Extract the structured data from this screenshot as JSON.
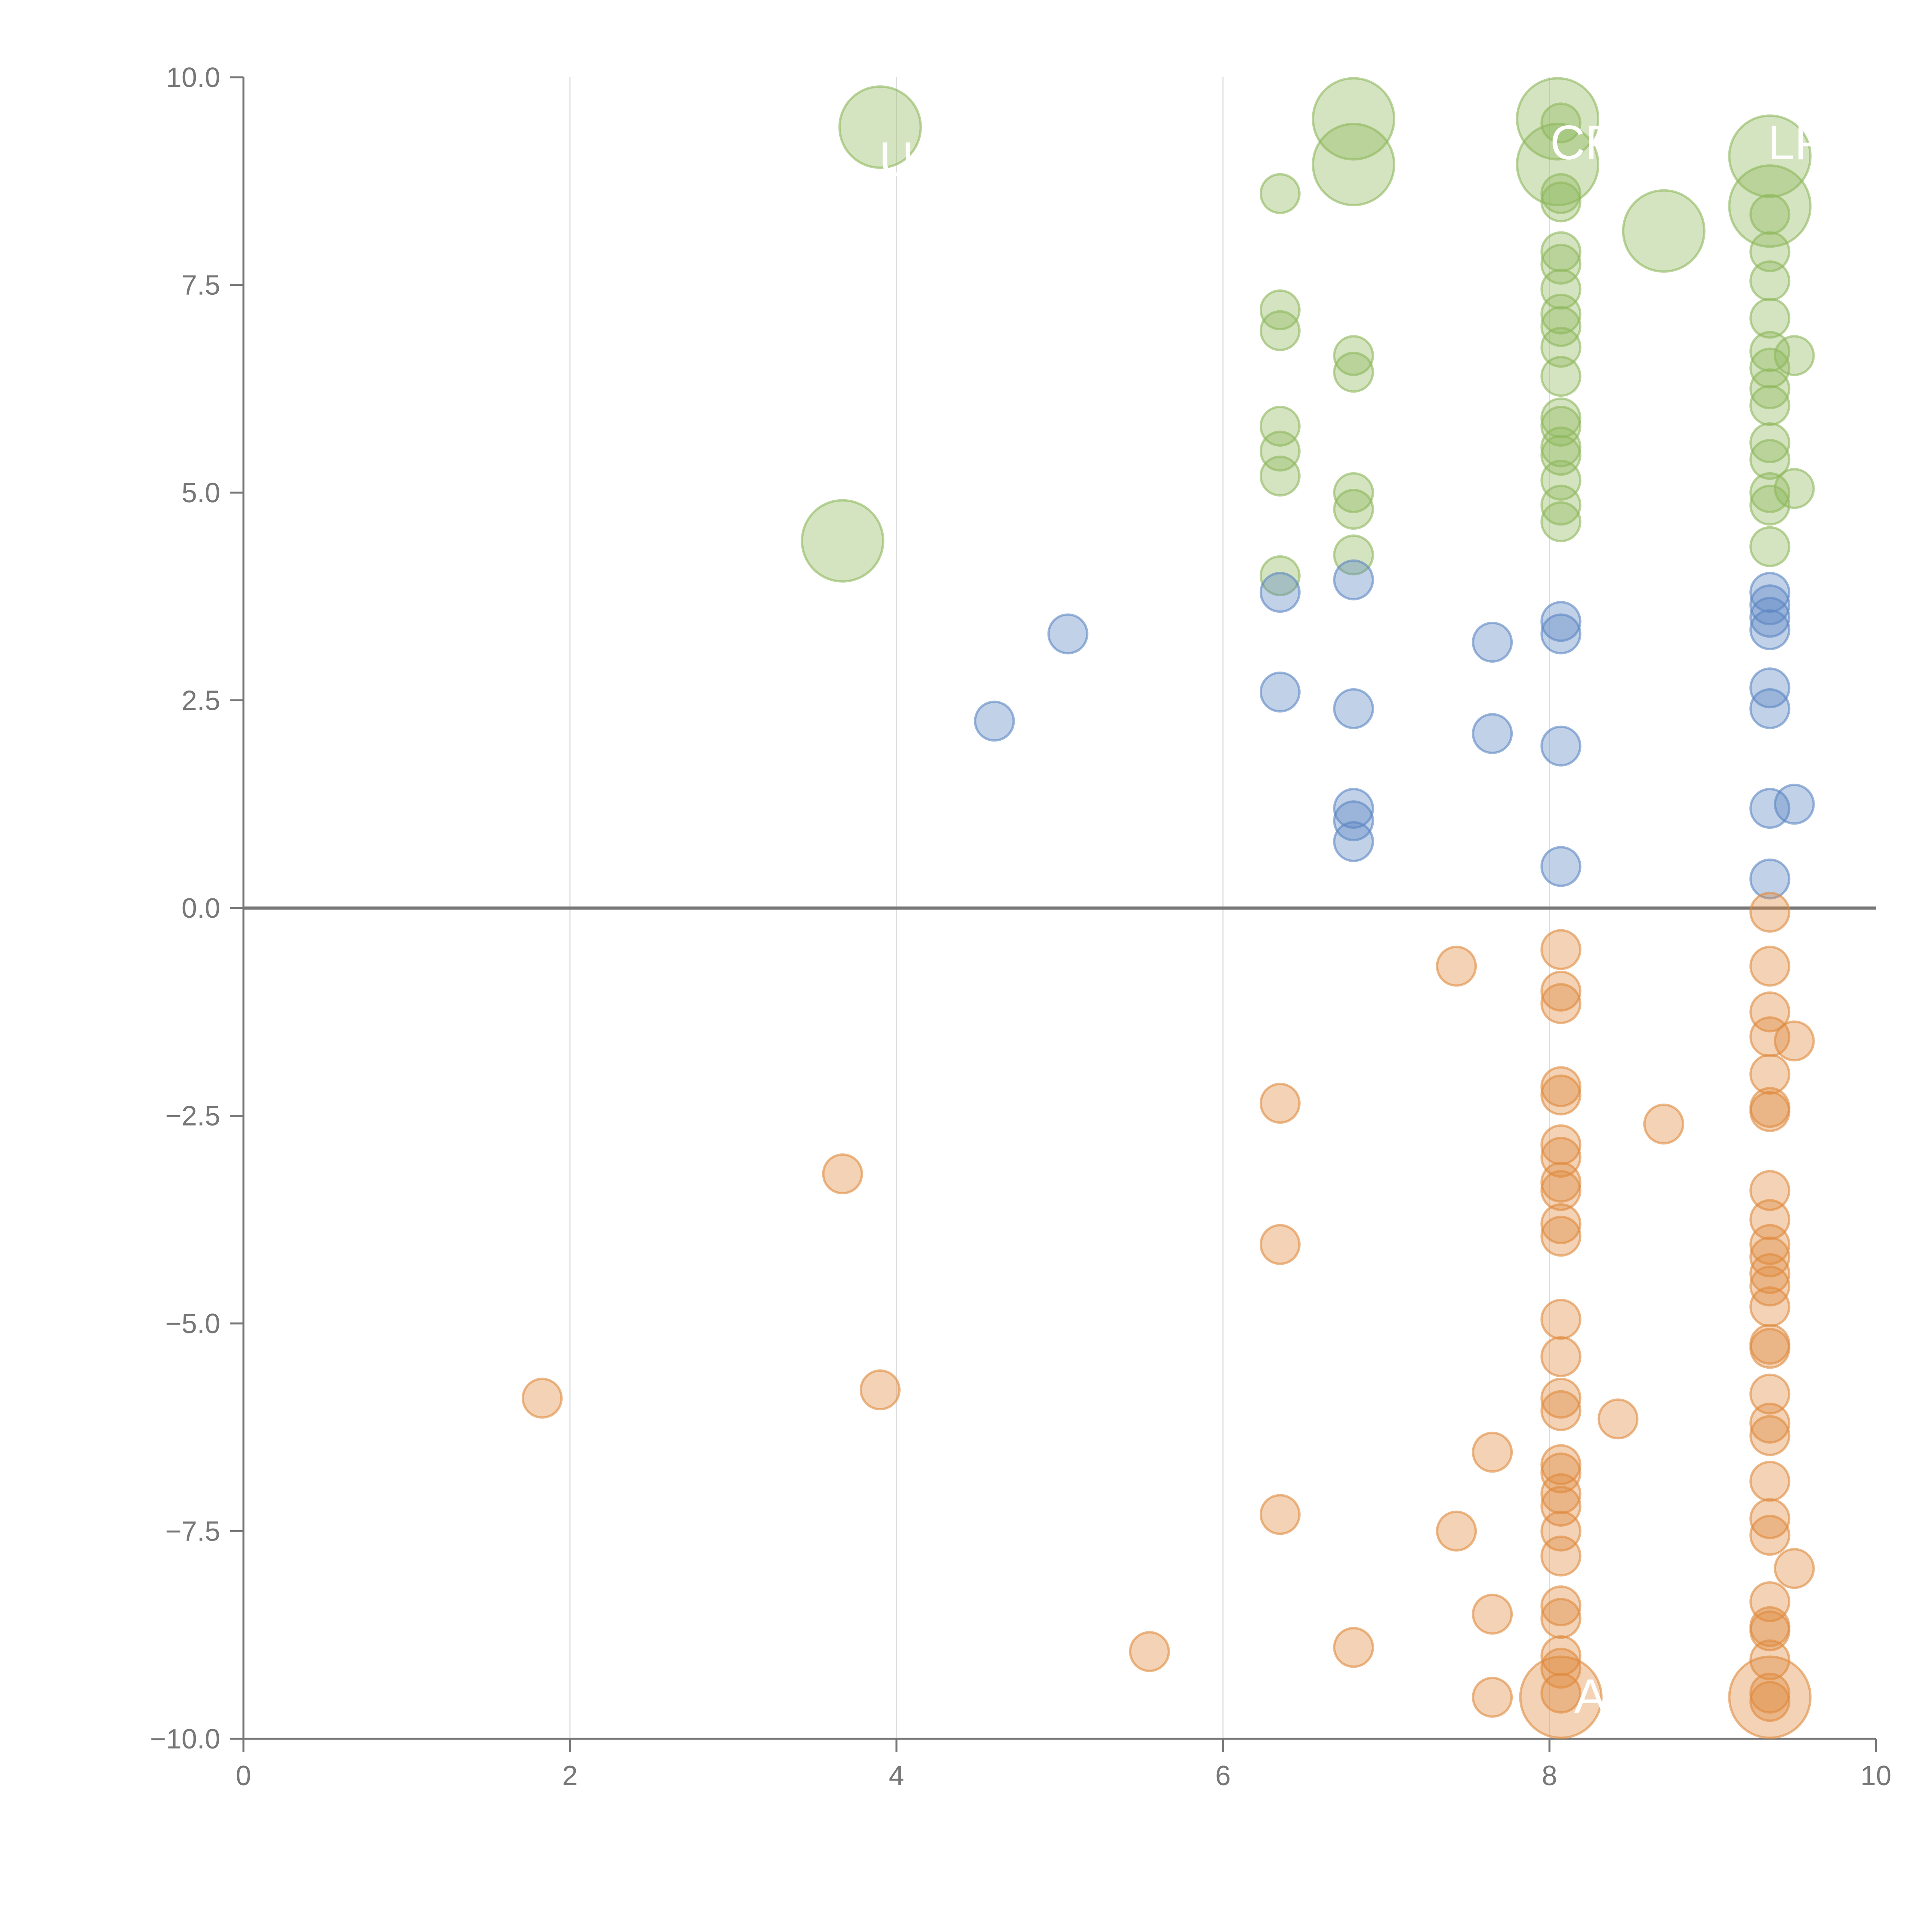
{
  "chart_data": {
    "type": "scatter",
    "title": "",
    "xlabel": "",
    "ylabel": "",
    "xlim": [
      0,
      10
    ],
    "ylim": [
      -10,
      10
    ],
    "x_ticks": [
      "0",
      "2",
      "4",
      "6",
      "8",
      "10"
    ],
    "y_ticks": [
      "10.0",
      "7.5",
      "5.0",
      "2.5",
      "0.0",
      "−2.5",
      "−5.0",
      "−7.5",
      "−10.0"
    ],
    "x_tick_values": [
      0,
      2,
      4,
      6,
      8,
      10
    ],
    "y_tick_values": [
      10,
      7.5,
      5,
      2.5,
      0,
      -2.5,
      -5,
      -7.5,
      -10
    ],
    "vertical_gridlines_at": [
      2,
      4,
      6,
      8
    ],
    "zero_line": true,
    "colors": {
      "green": "#8db85b",
      "blue": "#5b86c3",
      "orange": "#e08a3d",
      "axis": "#777777",
      "grid": "#dddddd"
    },
    "series": [
      {
        "color_key": "green",
        "points": [
          {
            "x": 3.9,
            "y": 9.4,
            "size": "large"
          },
          {
            "x": 6.8,
            "y": 9.5,
            "size": "large"
          },
          {
            "x": 6.8,
            "y": 8.95,
            "size": "large"
          },
          {
            "x": 8.05,
            "y": 9.5,
            "size": "large"
          },
          {
            "x": 8.05,
            "y": 8.95,
            "size": "large"
          },
          {
            "x": 9.35,
            "y": 9.05,
            "size": "large"
          },
          {
            "x": 9.35,
            "y": 8.45,
            "size": "large"
          },
          {
            "x": 8.7,
            "y": 8.15,
            "size": "large"
          },
          {
            "x": 3.67,
            "y": 4.42,
            "size": "large"
          },
          {
            "x": 6.35,
            "y": 8.6
          },
          {
            "x": 6.35,
            "y": 7.2
          },
          {
            "x": 6.35,
            "y": 6.95
          },
          {
            "x": 6.35,
            "y": 5.8
          },
          {
            "x": 6.35,
            "y": 5.5
          },
          {
            "x": 6.35,
            "y": 5.2
          },
          {
            "x": 6.35,
            "y": 4.0
          },
          {
            "x": 6.8,
            "y": 6.65
          },
          {
            "x": 6.8,
            "y": 6.45
          },
          {
            "x": 6.8,
            "y": 5.0
          },
          {
            "x": 6.8,
            "y": 4.8
          },
          {
            "x": 6.8,
            "y": 4.25
          },
          {
            "x": 8.07,
            "y": 9.45
          },
          {
            "x": 8.07,
            "y": 8.6
          },
          {
            "x": 8.07,
            "y": 8.5
          },
          {
            "x": 8.07,
            "y": 7.9
          },
          {
            "x": 8.07,
            "y": 7.75
          },
          {
            "x": 8.07,
            "y": 7.45
          },
          {
            "x": 8.07,
            "y": 7.15
          },
          {
            "x": 8.07,
            "y": 7.0
          },
          {
            "x": 8.07,
            "y": 6.75
          },
          {
            "x": 8.07,
            "y": 6.4
          },
          {
            "x": 8.07,
            "y": 5.9
          },
          {
            "x": 8.07,
            "y": 5.8
          },
          {
            "x": 8.07,
            "y": 5.55
          },
          {
            "x": 8.07,
            "y": 5.45
          },
          {
            "x": 8.07,
            "y": 5.15
          },
          {
            "x": 8.07,
            "y": 4.85
          },
          {
            "x": 8.07,
            "y": 4.65
          },
          {
            "x": 9.35,
            "y": 8.35
          },
          {
            "x": 9.35,
            "y": 7.9
          },
          {
            "x": 9.35,
            "y": 7.55
          },
          {
            "x": 9.35,
            "y": 7.1
          },
          {
            "x": 9.35,
            "y": 6.7
          },
          {
            "x": 9.35,
            "y": 6.5
          },
          {
            "x": 9.35,
            "y": 6.25
          },
          {
            "x": 9.35,
            "y": 6.05
          },
          {
            "x": 9.35,
            "y": 5.6
          },
          {
            "x": 9.35,
            "y": 5.4
          },
          {
            "x": 9.35,
            "y": 5.0
          },
          {
            "x": 9.35,
            "y": 4.85
          },
          {
            "x": 9.35,
            "y": 4.35
          },
          {
            "x": 9.5,
            "y": 6.65
          },
          {
            "x": 9.5,
            "y": 5.05
          }
        ]
      },
      {
        "color_key": "blue",
        "points": [
          {
            "x": 4.6,
            "y": 2.25
          },
          {
            "x": 5.05,
            "y": 3.3
          },
          {
            "x": 6.35,
            "y": 3.8
          },
          {
            "x": 6.35,
            "y": 2.6
          },
          {
            "x": 6.8,
            "y": 3.95
          },
          {
            "x": 6.8,
            "y": 2.4
          },
          {
            "x": 6.8,
            "y": 1.2
          },
          {
            "x": 6.8,
            "y": 1.05
          },
          {
            "x": 6.8,
            "y": 0.8
          },
          {
            "x": 7.65,
            "y": 3.2
          },
          {
            "x": 7.65,
            "y": 2.1
          },
          {
            "x": 8.07,
            "y": 3.45
          },
          {
            "x": 8.07,
            "y": 3.3
          },
          {
            "x": 8.07,
            "y": 1.95
          },
          {
            "x": 8.07,
            "y": 0.5
          },
          {
            "x": 9.35,
            "y": 3.8
          },
          {
            "x": 9.35,
            "y": 3.65
          },
          {
            "x": 9.35,
            "y": 3.5
          },
          {
            "x": 9.35,
            "y": 3.35
          },
          {
            "x": 9.35,
            "y": 2.65
          },
          {
            "x": 9.35,
            "y": 2.4
          },
          {
            "x": 9.35,
            "y": 1.2
          },
          {
            "x": 9.35,
            "y": 0.35
          },
          {
            "x": 9.5,
            "y": 1.25
          }
        ]
      },
      {
        "color_key": "orange",
        "points": [
          {
            "x": 1.83,
            "y": -5.9
          },
          {
            "x": 3.67,
            "y": -3.2
          },
          {
            "x": 3.9,
            "y": -5.8
          },
          {
            "x": 5.55,
            "y": -8.95
          },
          {
            "x": 6.35,
            "y": -2.35
          },
          {
            "x": 6.35,
            "y": -4.05
          },
          {
            "x": 6.35,
            "y": -7.3
          },
          {
            "x": 6.8,
            "y": -8.9
          },
          {
            "x": 7.43,
            "y": -0.7
          },
          {
            "x": 7.43,
            "y": -7.5
          },
          {
            "x": 7.65,
            "y": -6.55
          },
          {
            "x": 7.65,
            "y": -8.5
          },
          {
            "x": 7.65,
            "y": -9.5
          },
          {
            "x": 8.42,
            "y": -6.15
          },
          {
            "x": 8.7,
            "y": -2.6
          },
          {
            "x": 8.07,
            "y": -0.5
          },
          {
            "x": 8.07,
            "y": -1.0
          },
          {
            "x": 8.07,
            "y": -1.15
          },
          {
            "x": 8.07,
            "y": -2.15
          },
          {
            "x": 8.07,
            "y": -2.25
          },
          {
            "x": 8.07,
            "y": -2.85
          },
          {
            "x": 8.07,
            "y": -3.0
          },
          {
            "x": 8.07,
            "y": -3.3
          },
          {
            "x": 8.07,
            "y": -3.4
          },
          {
            "x": 8.07,
            "y": -3.8
          },
          {
            "x": 8.07,
            "y": -3.95
          },
          {
            "x": 8.07,
            "y": -4.95
          },
          {
            "x": 8.07,
            "y": -5.4
          },
          {
            "x": 8.07,
            "y": -5.9
          },
          {
            "x": 8.07,
            "y": -6.05
          },
          {
            "x": 8.07,
            "y": -6.7
          },
          {
            "x": 8.07,
            "y": -6.8
          },
          {
            "x": 8.07,
            "y": -7.05
          },
          {
            "x": 8.07,
            "y": -7.2
          },
          {
            "x": 8.07,
            "y": -7.5
          },
          {
            "x": 8.07,
            "y": -7.8
          },
          {
            "x": 8.07,
            "y": -8.4
          },
          {
            "x": 8.07,
            "y": -8.55
          },
          {
            "x": 8.07,
            "y": -9.0
          },
          {
            "x": 8.07,
            "y": -9.15
          },
          {
            "x": 8.07,
            "y": -9.45
          },
          {
            "x": 8.07,
            "y": -9.5,
            "size": "large"
          },
          {
            "x": 9.35,
            "y": -0.05
          },
          {
            "x": 9.35,
            "y": -0.7
          },
          {
            "x": 9.35,
            "y": -1.25
          },
          {
            "x": 9.35,
            "y": -1.55
          },
          {
            "x": 9.35,
            "y": -2.0
          },
          {
            "x": 9.35,
            "y": -2.4
          },
          {
            "x": 9.35,
            "y": -2.45
          },
          {
            "x": 9.35,
            "y": -3.4
          },
          {
            "x": 9.35,
            "y": -3.75
          },
          {
            "x": 9.35,
            "y": -4.05
          },
          {
            "x": 9.35,
            "y": -4.2
          },
          {
            "x": 9.35,
            "y": -4.4
          },
          {
            "x": 9.35,
            "y": -4.55
          },
          {
            "x": 9.35,
            "y": -4.8
          },
          {
            "x": 9.35,
            "y": -5.25
          },
          {
            "x": 9.35,
            "y": -5.3
          },
          {
            "x": 9.35,
            "y": -5.85
          },
          {
            "x": 9.35,
            "y": -6.2
          },
          {
            "x": 9.35,
            "y": -6.35
          },
          {
            "x": 9.35,
            "y": -6.9
          },
          {
            "x": 9.35,
            "y": -7.35
          },
          {
            "x": 9.35,
            "y": -7.55
          },
          {
            "x": 9.35,
            "y": -8.35
          },
          {
            "x": 9.35,
            "y": -8.65
          },
          {
            "x": 9.35,
            "y": -8.7
          },
          {
            "x": 9.35,
            "y": -9.05
          },
          {
            "x": 9.35,
            "y": -9.45
          },
          {
            "x": 9.35,
            "y": -9.55
          },
          {
            "x": 9.35,
            "y": -9.5,
            "size": "large"
          },
          {
            "x": 9.5,
            "y": -1.6
          },
          {
            "x": 9.5,
            "y": -7.95
          }
        ]
      }
    ],
    "annotations": [
      {
        "text": "U",
        "x": 4.0,
        "y": 9.0
      },
      {
        "text": "CFX",
        "x": 8.3,
        "y": 9.2
      },
      {
        "text": "LPL",
        "x": 9.6,
        "y": 9.2
      },
      {
        "text": "A",
        "x": 8.25,
        "y": -9.5
      }
    ]
  }
}
